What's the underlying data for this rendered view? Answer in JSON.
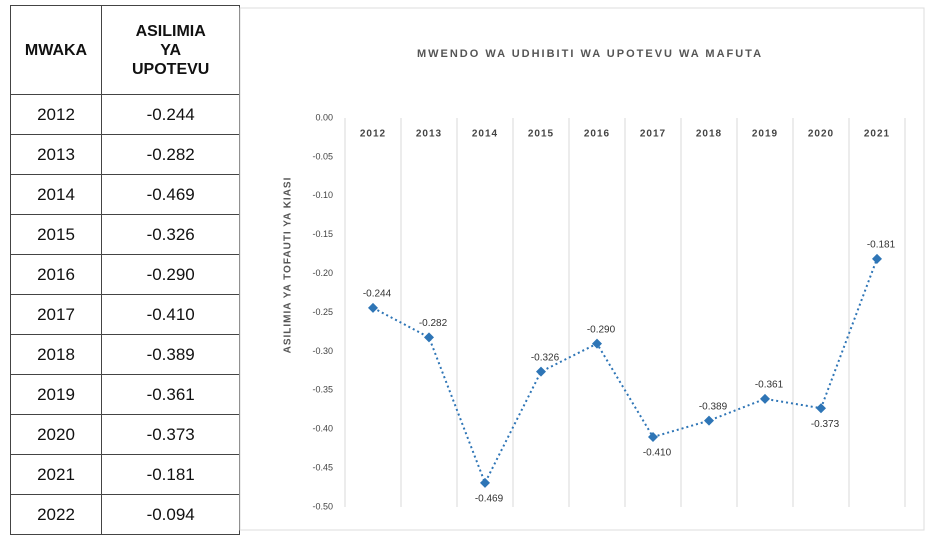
{
  "table": {
    "headers": [
      "MWAKA",
      "ASILIMIA YA UPOTEVU"
    ],
    "rows": [
      [
        "2012",
        "-0.244"
      ],
      [
        "2013",
        "-0.282"
      ],
      [
        "2014",
        "-0.469"
      ],
      [
        "2015",
        "-0.326"
      ],
      [
        "2016",
        "-0.290"
      ],
      [
        "2017",
        "-0.410"
      ],
      [
        "2018",
        "-0.389"
      ],
      [
        "2019",
        "-0.361"
      ],
      [
        "2020",
        "-0.373"
      ],
      [
        "2021",
        "-0.181"
      ],
      [
        "2022",
        "-0.094"
      ]
    ]
  },
  "chart_data": {
    "type": "line",
    "title": "MWENDO WA UDHIBITI WA UPOTEVU WA MAFUTA",
    "y_label": "ASILIMIA YA TOFAUTI YA KIASI",
    "categories": [
      "2012",
      "2013",
      "2014",
      "2015",
      "2016",
      "2017",
      "2018",
      "2019",
      "2020",
      "2021"
    ],
    "values": [
      -0.244,
      -0.282,
      -0.469,
      -0.326,
      -0.29,
      -0.41,
      -0.389,
      -0.361,
      -0.373,
      -0.181
    ],
    "value_labels": [
      "-0.244",
      "-0.282",
      "-0.469",
      "-0.326",
      "-0.290",
      "-0.410",
      "-0.389",
      "-0.361",
      "-0.373",
      "-0.181"
    ],
    "color": "#2e75b6",
    "ylim": [
      -0.5,
      0
    ],
    "yticks": [
      {
        "value": 0,
        "label": "0.00"
      },
      {
        "value": -0.05,
        "label": "-0.05"
      },
      {
        "value": -0.1,
        "label": "-0.10"
      },
      {
        "value": -0.15,
        "label": "-0.15"
      },
      {
        "value": -0.2,
        "label": "-0.20"
      },
      {
        "value": -0.25,
        "label": "-0.25"
      },
      {
        "value": -0.3,
        "label": "-0.30"
      },
      {
        "value": -0.35,
        "label": "-0.35"
      },
      {
        "value": -0.4,
        "label": "-0.40"
      },
      {
        "value": -0.45,
        "label": "-0.45"
      },
      {
        "value": -0.5,
        "label": "-0.50"
      }
    ]
  }
}
